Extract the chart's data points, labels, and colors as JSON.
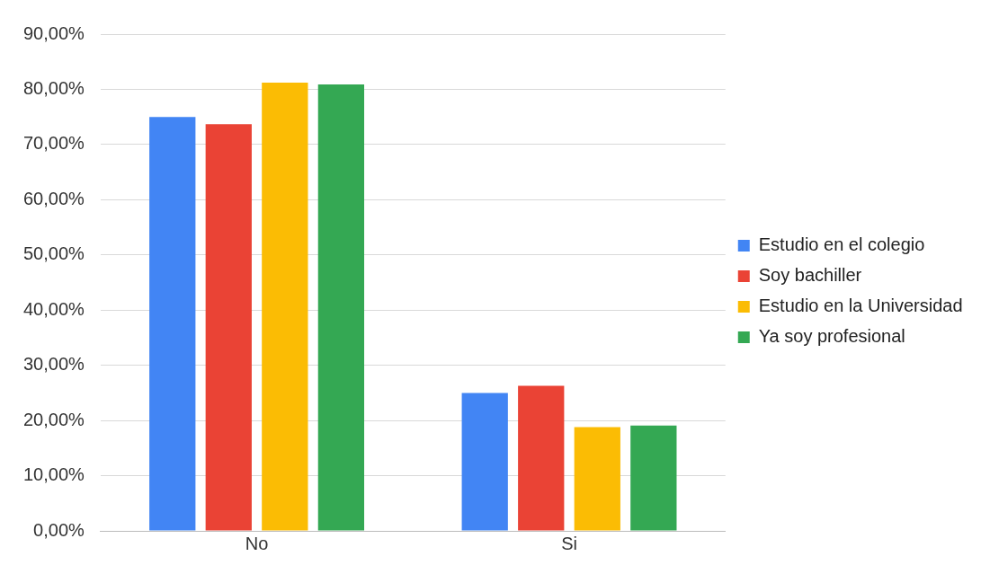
{
  "chart_data": {
    "type": "bar",
    "categories": [
      "No",
      "Si"
    ],
    "series": [
      {
        "name": "Estudio en el colegio",
        "color": "#4285f4",
        "values": [
          75.0,
          25.0
        ]
      },
      {
        "name": "Soy bachiller",
        "color": "#ea4335",
        "values": [
          73.7,
          26.3
        ]
      },
      {
        "name": "Estudio en la Universidad",
        "color": "#fbbc04",
        "values": [
          81.2,
          18.8
        ]
      },
      {
        "name": "Ya soy profesional",
        "color": "#34a853",
        "values": [
          80.9,
          19.1
        ]
      }
    ],
    "ylim": [
      0,
      90
    ],
    "yticks": [
      {
        "value": 0,
        "label": "0,00%"
      },
      {
        "value": 10,
        "label": "10,00%"
      },
      {
        "value": 20,
        "label": "20,00%"
      },
      {
        "value": 30,
        "label": "30,00%"
      },
      {
        "value": 40,
        "label": "40,00%"
      },
      {
        "value": 50,
        "label": "50,00%"
      },
      {
        "value": 60,
        "label": "60,00%"
      },
      {
        "value": 70,
        "label": "70,00%"
      },
      {
        "value": 80,
        "label": "80,00%"
      },
      {
        "value": 90,
        "label": "90,00%"
      }
    ],
    "grid": "y",
    "legend": "right"
  }
}
